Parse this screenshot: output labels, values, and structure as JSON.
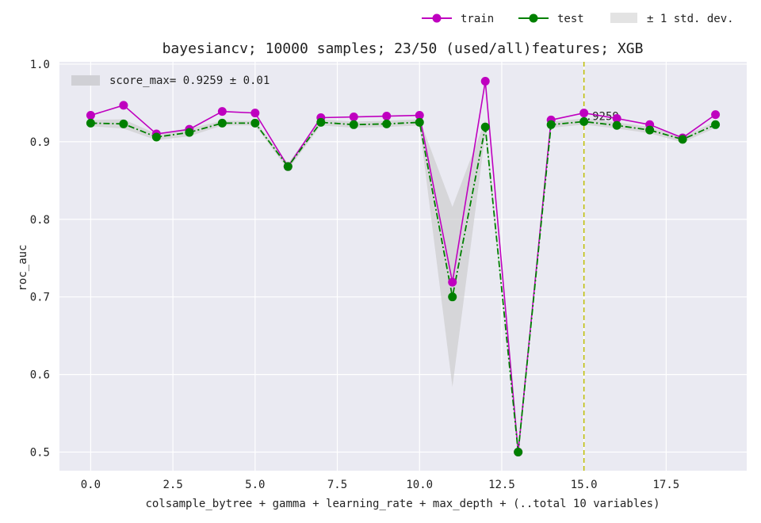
{
  "chart_data": {
    "type": "line",
    "title": "bayesiancv; 10000 samples; 23/50 (used/all)features; XGB",
    "xlabel": "colsample_bytree + gamma + learning_rate + max_depth + (..total 10 variables)",
    "ylabel": "roc_auc",
    "xlim": [
      -0.95,
      19.95
    ],
    "ylim": [
      0.476,
      1.003
    ],
    "xticks": [
      0.0,
      2.5,
      5.0,
      7.5,
      10.0,
      12.5,
      15.0,
      17.5
    ],
    "xtick_labels": [
      "0.0",
      "2.5",
      "5.0",
      "7.5",
      "10.0",
      "12.5",
      "15.0",
      "17.5"
    ],
    "yticks": [
      0.5,
      0.6,
      0.7,
      0.8,
      0.9,
      1.0
    ],
    "ytick_labels": [
      "0.5",
      "0.6",
      "0.7",
      "0.8",
      "0.9",
      "1.0"
    ],
    "grid": true,
    "x": [
      0,
      1,
      2,
      3,
      4,
      5,
      6,
      7,
      8,
      9,
      10,
      11,
      12,
      13,
      14,
      15,
      16,
      17,
      18,
      19
    ],
    "series": [
      {
        "name": "train",
        "color": "#bf00bf",
        "values": [
          0.934,
          0.947,
          0.91,
          0.916,
          0.939,
          0.937,
          0.868,
          0.931,
          0.932,
          0.933,
          0.934,
          0.719,
          0.978,
          0.5,
          0.928,
          0.937,
          0.93,
          0.922,
          0.905,
          0.935
        ]
      },
      {
        "name": "test",
        "color": "#008000",
        "values": [
          0.924,
          0.923,
          0.906,
          0.912,
          0.924,
          0.924,
          0.868,
          0.925,
          0.922,
          0.923,
          0.925,
          0.7,
          0.919,
          0.5,
          0.922,
          0.926,
          0.921,
          0.915,
          0.903,
          0.922
        ]
      }
    ],
    "band": {
      "name": "± 1 std. dev.",
      "color": "#c8c8c8",
      "lower": [
        0.92,
        0.917,
        0.902,
        0.907,
        0.921,
        0.921,
        0.864,
        0.921,
        0.918,
        0.919,
        0.921,
        0.584,
        0.91,
        0.499,
        0.918,
        0.922,
        0.917,
        0.911,
        0.899,
        0.918
      ],
      "upper": [
        0.928,
        0.929,
        0.91,
        0.917,
        0.927,
        0.927,
        0.872,
        0.929,
        0.926,
        0.927,
        0.929,
        0.816,
        0.928,
        0.501,
        0.926,
        0.93,
        0.925,
        0.919,
        0.907,
        0.926
      ]
    },
    "best": {
      "x": 15,
      "value": 0.9259,
      "label": ".9259",
      "line_color": "#bfbf00"
    },
    "inner_legend": {
      "text": "score_max= 0.9259 ± 0.01",
      "placement": "upper-left"
    },
    "legend": {
      "placement": "top-right-outside",
      "entries": [
        "train",
        "test",
        "± 1 std. dev."
      ]
    }
  }
}
